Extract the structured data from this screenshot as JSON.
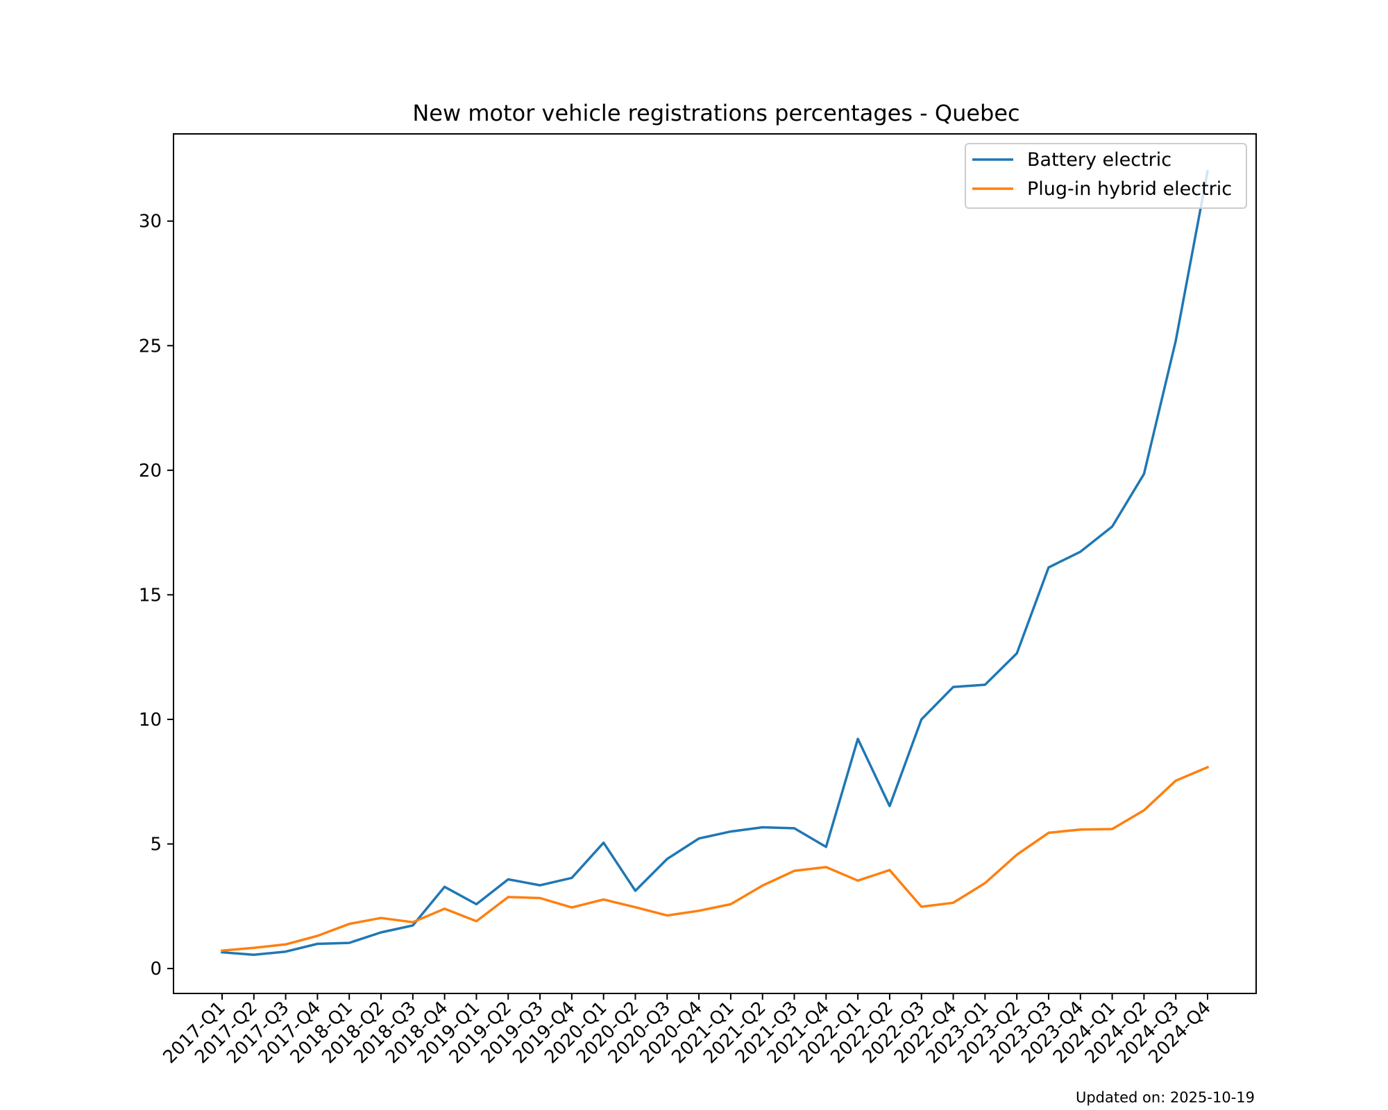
{
  "footnote": "Updated on: 2025-10-19",
  "chart_data": {
    "type": "line",
    "title": "New motor vehicle registrations percentages - Quebec",
    "xlabel": "",
    "ylabel": "",
    "categories": [
      "2017-Q1",
      "2017-Q2",
      "2017-Q3",
      "2017-Q4",
      "2018-Q1",
      "2018-Q2",
      "2018-Q3",
      "2018-Q4",
      "2019-Q1",
      "2019-Q2",
      "2019-Q3",
      "2019-Q4",
      "2020-Q1",
      "2020-Q2",
      "2020-Q3",
      "2020-Q4",
      "2021-Q1",
      "2021-Q2",
      "2021-Q3",
      "2021-Q4",
      "2022-Q1",
      "2022-Q2",
      "2022-Q3",
      "2022-Q4",
      "2023-Q1",
      "2023-Q2",
      "2023-Q3",
      "2023-Q4",
      "2024-Q1",
      "2024-Q2",
      "2024-Q3",
      "2024-Q4"
    ],
    "ylim": [
      -1.0,
      33.5
    ],
    "yticks": [
      0,
      5,
      10,
      15,
      20,
      25,
      30
    ],
    "grid": false,
    "legend_position": "top-right",
    "series": [
      {
        "name": "Battery electric",
        "color": "#1f77b4",
        "values": [
          0.65,
          0.55,
          0.68,
          0.99,
          1.03,
          1.45,
          1.73,
          3.28,
          2.58,
          3.58,
          3.34,
          3.64,
          5.05,
          3.12,
          4.4,
          5.22,
          5.5,
          5.67,
          5.63,
          4.88,
          9.22,
          6.52,
          10.0,
          11.3,
          11.39,
          12.65,
          16.1,
          16.73,
          17.74,
          19.85,
          25.2,
          32.0
        ]
      },
      {
        "name": "Plug-in hybrid electric",
        "color": "#ff7f0e",
        "values": [
          0.72,
          0.83,
          0.97,
          1.31,
          1.79,
          2.03,
          1.86,
          2.4,
          1.9,
          2.87,
          2.83,
          2.45,
          2.77,
          2.46,
          2.13,
          2.32,
          2.58,
          3.33,
          3.92,
          4.07,
          3.53,
          3.95,
          2.48,
          2.64,
          3.43,
          4.57,
          5.45,
          5.58,
          5.6,
          6.35,
          7.54,
          8.08
        ]
      }
    ]
  }
}
